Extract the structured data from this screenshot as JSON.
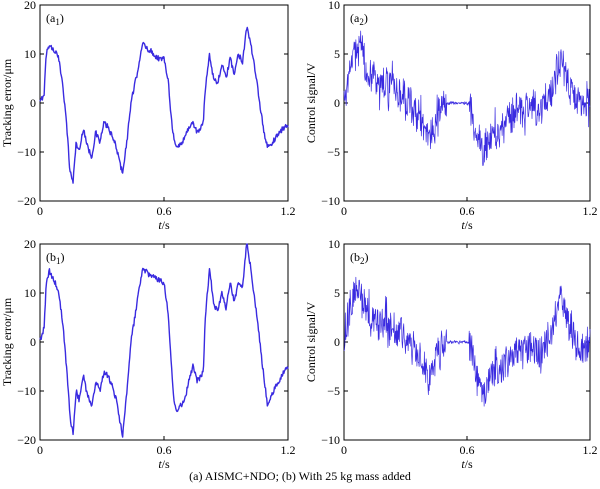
{
  "caption": "(a) AISMC+NDO; (b) With 25 kg mass added",
  "chart_data": [
    {
      "id": "a1",
      "type": "line",
      "panel_label": "(a1)",
      "panel_letter": "a",
      "panel_index": "1",
      "xlabel": "t/s",
      "ylabel": "Tracking error/μm",
      "xlim": [
        0,
        1.2
      ],
      "ylim": [
        -20,
        20
      ],
      "xticks": [
        0,
        0.6,
        1.2
      ],
      "xtick_labels": [
        "0",
        "0.6",
        "1.2"
      ],
      "yticks": [
        -20,
        -10,
        0,
        10,
        20
      ],
      "ytick_labels": [
        "−20",
        "−10",
        "0",
        "10",
        "20"
      ],
      "color": "#3a2be0",
      "series": [
        {
          "x": [
            0,
            0.02,
            0.03,
            0.045,
            0.06,
            0.075,
            0.09,
            0.11,
            0.13,
            0.145,
            0.16,
            0.175,
            0.19,
            0.21,
            0.23,
            0.25,
            0.27,
            0.29,
            0.31,
            0.33,
            0.35,
            0.37,
            0.39,
            0.4,
            0.42,
            0.44,
            0.47,
            0.49,
            0.5,
            0.52,
            0.54,
            0.56,
            0.58,
            0.6,
            0.62,
            0.635,
            0.65,
            0.66,
            0.68,
            0.7,
            0.72,
            0.74,
            0.76,
            0.78,
            0.79,
            0.8,
            0.82,
            0.84,
            0.86,
            0.88,
            0.9,
            0.92,
            0.94,
            0.96,
            0.98,
            1.0,
            1.02,
            1.05,
            1.08,
            1.1,
            1.12,
            1.14,
            1.16,
            1.18,
            1.2
          ],
          "values": [
            0,
            2,
            10,
            12,
            11,
            10.5,
            9,
            4,
            -5,
            -14,
            -16,
            -8,
            -10,
            -5,
            -9,
            -11,
            -6,
            -8,
            -4,
            -5,
            -7,
            -9,
            -13,
            -14,
            -8,
            0,
            6,
            11,
            12,
            11,
            10.5,
            9.5,
            9,
            9,
            5,
            -3,
            -8,
            -9,
            -8.5,
            -7,
            -5,
            -4,
            -6,
            -5,
            -4,
            3,
            10,
            5,
            4,
            8,
            5,
            9,
            6,
            10,
            8.5,
            15.5,
            12,
            4,
            -5,
            -9,
            -8.5,
            -7,
            -6,
            -5,
            -4.5
          ]
        }
      ]
    },
    {
      "id": "a2",
      "type": "line",
      "panel_label": "(a2)",
      "panel_letter": "a",
      "panel_index": "2",
      "xlabel": "t/s",
      "ylabel": "Control signal/V",
      "xlim": [
        0,
        1.2
      ],
      "ylim": [
        -10,
        10
      ],
      "xticks": [
        0,
        0.6,
        1.2
      ],
      "xtick_labels": [
        "0",
        "0.6",
        "1.2"
      ],
      "yticks": [
        -10,
        -5,
        0,
        5,
        10
      ],
      "ytick_labels": [
        "−10",
        "−5",
        "0",
        "5",
        "10"
      ],
      "color": "#3a2be0",
      "series": [
        {
          "x": [
            0,
            0.02,
            0.04,
            0.06,
            0.08,
            0.1,
            0.12,
            0.14,
            0.16,
            0.18,
            0.2,
            0.22,
            0.24,
            0.26,
            0.28,
            0.3,
            0.32,
            0.34,
            0.36,
            0.38,
            0.4,
            0.42,
            0.44,
            0.46,
            0.48,
            0.5,
            0.52,
            0.54,
            0.56,
            0.58,
            0.6,
            0.62,
            0.64,
            0.66,
            0.68,
            0.7,
            0.72,
            0.74,
            0.76,
            0.78,
            0.8,
            0.82,
            0.84,
            0.86,
            0.88,
            0.9,
            0.92,
            0.94,
            0.96,
            0.98,
            1.0,
            1.02,
            1.04,
            1.06,
            1.08,
            1.1,
            1.12,
            1.14,
            1.16,
            1.18,
            1.2
          ],
          "values": [
            0,
            2.5,
            4.5,
            5.5,
            5,
            4,
            3,
            2.5,
            2,
            1.5,
            2.5,
            1.5,
            2,
            1,
            1.5,
            0.5,
            0,
            -1,
            -0.5,
            -2,
            -3,
            -3.5,
            -2.5,
            -1,
            0,
            0,
            0,
            0,
            0,
            0,
            0,
            -0.5,
            -2.5,
            -4.5,
            -5,
            -4,
            -3,
            -3,
            -2,
            -2.5,
            -1.5,
            -1.5,
            -0.5,
            -1,
            -1,
            0,
            -0.5,
            -1,
            -1,
            -0.5,
            0.5,
            1.5,
            3.5,
            4.5,
            3,
            1.5,
            0.5,
            0.5,
            0,
            0,
            0
          ]
        }
      ]
    },
    {
      "id": "b1",
      "type": "line",
      "panel_label": "(b1)",
      "panel_letter": "b",
      "panel_index": "1",
      "xlabel": "t/s",
      "ylabel": "Tracking error/μm",
      "xlim": [
        0,
        1.2
      ],
      "ylim": [
        -20,
        20
      ],
      "xticks": [
        0,
        0.6,
        1.2
      ],
      "xtick_labels": [
        "0",
        "0.6",
        "1.2"
      ],
      "yticks": [
        -20,
        -10,
        0,
        10,
        20
      ],
      "ytick_labels": [
        "−20",
        "−10",
        "0",
        "10",
        "20"
      ],
      "color": "#3a2be0",
      "series": [
        {
          "x": [
            0,
            0.02,
            0.03,
            0.045,
            0.06,
            0.075,
            0.09,
            0.11,
            0.13,
            0.145,
            0.16,
            0.175,
            0.19,
            0.21,
            0.23,
            0.25,
            0.27,
            0.29,
            0.31,
            0.33,
            0.35,
            0.37,
            0.39,
            0.4,
            0.42,
            0.44,
            0.47,
            0.49,
            0.5,
            0.52,
            0.54,
            0.56,
            0.58,
            0.6,
            0.62,
            0.635,
            0.65,
            0.66,
            0.68,
            0.7,
            0.72,
            0.74,
            0.76,
            0.78,
            0.79,
            0.8,
            0.82,
            0.84,
            0.86,
            0.88,
            0.9,
            0.92,
            0.94,
            0.96,
            0.98,
            1.0,
            1.02,
            1.05,
            1.08,
            1.1,
            1.12,
            1.14,
            1.16,
            1.18,
            1.2
          ],
          "values": [
            0,
            3,
            12,
            14.5,
            13,
            12,
            10,
            4,
            -6,
            -15,
            -19,
            -10,
            -12,
            -7,
            -11,
            -13,
            -8,
            -10,
            -6,
            -7,
            -9,
            -12,
            -17,
            -19,
            -10,
            0,
            8,
            13.5,
            15,
            14,
            13.5,
            13,
            12.5,
            12,
            6,
            -4,
            -13,
            -14,
            -13,
            -12,
            -8,
            -5,
            -8,
            -7,
            -6,
            5,
            15,
            8,
            6,
            10,
            7,
            12,
            8,
            12,
            11,
            20.5,
            15,
            5,
            -6,
            -12.5,
            -11,
            -9,
            -8,
            -6,
            -5
          ]
        }
      ]
    },
    {
      "id": "b2",
      "type": "line",
      "panel_label": "(b2)",
      "panel_letter": "b",
      "panel_index": "2",
      "xlabel": "t/s",
      "ylabel": "Control signal/V",
      "xlim": [
        0,
        1.2
      ],
      "ylim": [
        -10,
        10
      ],
      "xticks": [
        0,
        0.6,
        1.2
      ],
      "xtick_labels": [
        "0",
        "0.6",
        "1.2"
      ],
      "yticks": [
        -10,
        -5,
        0,
        5,
        10
      ],
      "ytick_labels": [
        "−10",
        "−5",
        "0",
        "5",
        "10"
      ],
      "color": "#3a2be0",
      "series": [
        {
          "x": [
            0,
            0.02,
            0.04,
            0.06,
            0.08,
            0.1,
            0.12,
            0.14,
            0.16,
            0.18,
            0.2,
            0.22,
            0.24,
            0.26,
            0.28,
            0.3,
            0.32,
            0.34,
            0.36,
            0.38,
            0.4,
            0.42,
            0.44,
            0.46,
            0.48,
            0.5,
            0.52,
            0.54,
            0.56,
            0.58,
            0.6,
            0.62,
            0.64,
            0.66,
            0.68,
            0.7,
            0.72,
            0.74,
            0.76,
            0.78,
            0.8,
            0.82,
            0.84,
            0.86,
            0.88,
            0.9,
            0.92,
            0.94,
            0.96,
            0.98,
            1.0,
            1.02,
            1.04,
            1.06,
            1.08,
            1.1,
            1.12,
            1.14,
            1.16,
            1.18,
            1.2
          ],
          "values": [
            0,
            2.5,
            4.5,
            5.5,
            5,
            4,
            3,
            2.5,
            2,
            1.5,
            2.5,
            1.5,
            2,
            1,
            1,
            0,
            -0.5,
            -1,
            -1,
            -2,
            -3,
            -3.5,
            -2.5,
            -1,
            0,
            0,
            0,
            0,
            0,
            0,
            0,
            -0.5,
            -3,
            -5,
            -5.5,
            -4.5,
            -3,
            -3,
            -2.5,
            -2.5,
            -2,
            -1.5,
            -1,
            -1,
            -1,
            -0.5,
            -0.5,
            -1,
            -1,
            -0.5,
            0.5,
            1.5,
            3.5,
            4.5,
            3,
            1.5,
            0.5,
            0,
            -0.5,
            -0.5,
            -0.5
          ]
        }
      ]
    }
  ]
}
